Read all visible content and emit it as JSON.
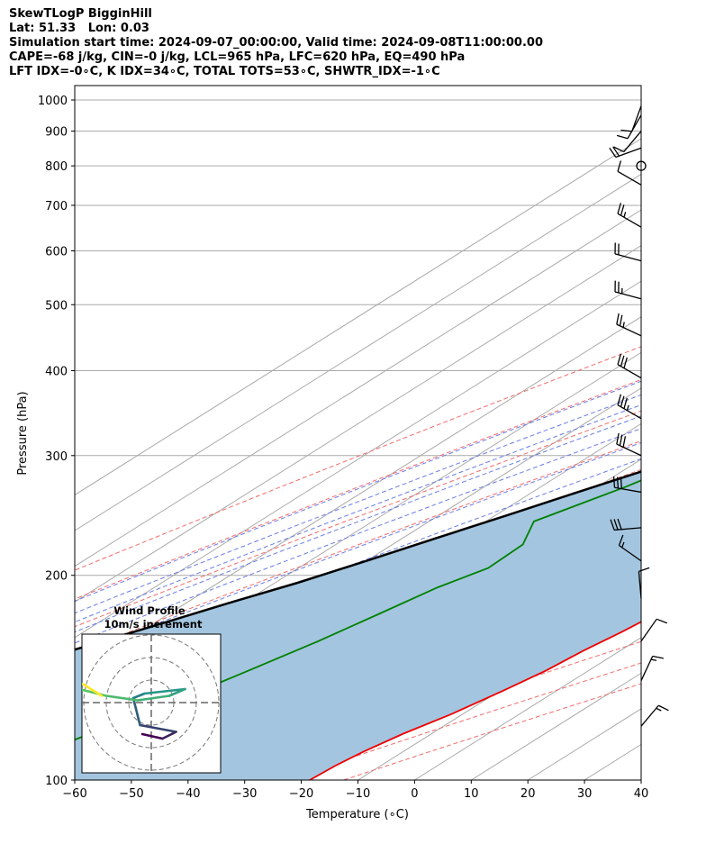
{
  "header": {
    "lines": [
      "SkewTLogP BigginHill",
      "Lat: 51.33   Lon: 0.03",
      "Simulation start time: 2024-09-07_00:00:00, Valid time: 2024-09-08T11:00:00.00",
      "CAPE=-68 j/kg, CIN=-0 j/kg, LCL=965 hPa, LFC=620 hPa, EQ=490 hPa",
      "LFT IDX=-0∘C, K IDX=34∘C, TOTAL TOTS=53∘C, SHWTR_IDX=-1∘C"
    ]
  },
  "chart_data": {
    "type": "line",
    "subtype": "skew-T log-P",
    "xlabel": "Temperature (∘C)",
    "ylabel": "Pressure (hPa)",
    "xlim": [
      -60,
      40
    ],
    "ylim": [
      1050,
      100
    ],
    "y_scale": "log",
    "x_ticks": [
      "−60",
      "−50",
      "−40",
      "−30",
      "−20",
      "−10",
      "0",
      "10",
      "20",
      "30",
      "40"
    ],
    "y_ticks": [
      "100",
      "200",
      "300",
      "400",
      "500",
      "600",
      "700",
      "800",
      "900",
      "1000"
    ],
    "grid": true,
    "series": [
      {
        "role": "temperature",
        "color": "#ee0000",
        "points": [
          [
            16.3,
            980
          ],
          [
            15.5,
            950
          ],
          [
            15,
            900
          ],
          [
            14,
            850
          ],
          [
            12.5,
            800
          ],
          [
            10,
            720
          ],
          [
            7.5,
            650
          ],
          [
            5,
            560
          ],
          [
            1,
            470
          ],
          [
            -4,
            400
          ],
          [
            -7,
            360
          ],
          [
            -7.5,
            340
          ],
          [
            -7.6,
            320
          ],
          [
            -8,
            300
          ],
          [
            -8,
            280
          ],
          [
            -6.5,
            265
          ],
          [
            -5,
            250
          ],
          [
            -2,
            235
          ],
          [
            -1,
            225
          ],
          [
            -1.5,
            210
          ],
          [
            -2.5,
            195
          ],
          [
            -3.5,
            180
          ],
          [
            -5,
            165
          ],
          [
            -6.5,
            155
          ],
          [
            -7.5,
            145
          ],
          [
            -9.5,
            135
          ],
          [
            -12,
            125
          ],
          [
            -15,
            117
          ],
          [
            -17,
            110
          ],
          [
            -18,
            105
          ],
          [
            -18.5,
            100
          ]
        ]
      },
      {
        "role": "dewpoint",
        "color": "#008000",
        "points": [
          [
            15.5,
            980
          ],
          [
            15,
            950
          ],
          [
            14.5,
            900
          ],
          [
            13,
            850
          ],
          [
            11,
            780
          ],
          [
            8,
            700
          ],
          [
            4,
            650
          ],
          [
            -3,
            600
          ],
          [
            -7,
            570
          ],
          [
            -10,
            530
          ],
          [
            -12,
            505
          ],
          [
            -15,
            490
          ],
          [
            -20,
            460
          ],
          [
            -21,
            440
          ],
          [
            -22,
            410
          ],
          [
            -24.5,
            380
          ],
          [
            -28,
            350
          ],
          [
            -35,
            325
          ],
          [
            -39,
            310
          ],
          [
            -45,
            270
          ],
          [
            -51.5,
            240
          ],
          [
            -47,
            222
          ],
          [
            -46.5,
            205
          ],
          [
            -50,
            192
          ],
          [
            -53,
            175
          ],
          [
            -56,
            160
          ],
          [
            -60,
            145
          ],
          [
            -63,
            135
          ],
          [
            -67,
            125
          ],
          [
            -72,
            113
          ],
          [
            -78,
            100
          ]
        ]
      },
      {
        "role": "parcel",
        "color": "#000000",
        "points": [
          [
            16.8,
            980
          ],
          [
            16,
            950
          ],
          [
            15,
            900
          ],
          [
            14,
            850
          ],
          [
            12.5,
            800
          ],
          [
            10,
            740
          ],
          [
            7,
            680
          ],
          [
            3,
            620
          ],
          [
            -1,
            560
          ],
          [
            -5,
            520
          ],
          [
            -9,
            490
          ],
          [
            -14,
            450
          ],
          [
            -20,
            410
          ],
          [
            -25,
            380
          ],
          [
            -31,
            350
          ],
          [
            -38,
            320
          ],
          [
            -45,
            290
          ],
          [
            -52,
            265
          ],
          [
            -58,
            245
          ],
          [
            -64,
            227
          ],
          [
            -70,
            210
          ],
          [
            -76,
            195
          ],
          [
            -82,
            183
          ],
          [
            -88,
            171
          ],
          [
            -94,
            160
          ],
          [
            -100,
            150
          ],
          [
            -106,
            141
          ],
          [
            -112,
            133
          ],
          [
            -118,
            125
          ],
          [
            -124,
            118
          ],
          [
            -130,
            112
          ],
          [
            -135,
            106
          ],
          [
            -140,
            101
          ],
          [
            -141,
            100
          ]
        ]
      }
    ],
    "hodograph": {
      "title": "Wind Profile",
      "subtitle": "10m/s increment",
      "ring_step_ms": 10,
      "points": [
        [
          -0.4,
          -1.4
        ],
        [
          0.5,
          -1.6
        ],
        [
          1.1,
          -1.3
        ],
        [
          -0.5,
          -1.0
        ],
        [
          -0.8,
          0.2
        ],
        [
          -0.3,
          0.4
        ],
        [
          1.5,
          0.6
        ],
        [
          0.8,
          0.3
        ],
        [
          -0.6,
          0.1
        ],
        [
          -2.0,
          0.3
        ],
        [
          -4.0,
          0.8
        ],
        [
          -5.5,
          1.3
        ],
        [
          -6.5,
          1.5
        ],
        [
          -5.0,
          1.4
        ],
        [
          -3.0,
          0.8
        ],
        [
          -2.2,
          0.3
        ]
      ]
    },
    "wind_barbs": [
      {
        "p": 980,
        "speed_kt": 10,
        "dir": 200
      },
      {
        "p": 950,
        "speed_kt": 10,
        "dir": 210
      },
      {
        "p": 900,
        "speed_kt": 10,
        "dir": 220
      },
      {
        "p": 850,
        "speed_kt": 20,
        "dir": 250
      },
      {
        "p": 800,
        "speed_kt": 0,
        "dir": 0
      },
      {
        "p": 750,
        "speed_kt": 10,
        "dir": 300
      },
      {
        "p": 650,
        "speed_kt": 25,
        "dir": 300
      },
      {
        "p": 580,
        "speed_kt": 20,
        "dir": 285
      },
      {
        "p": 510,
        "speed_kt": 25,
        "dir": 285
      },
      {
        "p": 450,
        "speed_kt": 25,
        "dir": 295
      },
      {
        "p": 390,
        "speed_kt": 30,
        "dir": 300
      },
      {
        "p": 340,
        "speed_kt": 35,
        "dir": 300
      },
      {
        "p": 300,
        "speed_kt": 30,
        "dir": 295
      },
      {
        "p": 265,
        "speed_kt": 30,
        "dir": 280
      },
      {
        "p": 235,
        "speed_kt": 30,
        "dir": 265
      },
      {
        "p": 210,
        "speed_kt": 15,
        "dir": 305
      },
      {
        "p": 185,
        "speed_kt": 10,
        "dir": 355
      },
      {
        "p": 160,
        "speed_kt": 10,
        "dir": 35
      },
      {
        "p": 140,
        "speed_kt": 15,
        "dir": 25
      },
      {
        "p": 120,
        "speed_kt": 15,
        "dir": 40
      }
    ]
  },
  "colors": {
    "temperature": "#ee0000",
    "dewpoint": "#008000",
    "parcel": "#000000",
    "cape_fill": "#a3c5df",
    "dry_adiabat": "#f26b6b",
    "moist_adiabat": "#6b7de6",
    "mixing_ratio": "#9b55c9",
    "isotherm": "#aaaaaa",
    "hodograph_start": "#440154",
    "hodograph_mid": "#21918c",
    "hodograph_end": "#fde725"
  }
}
